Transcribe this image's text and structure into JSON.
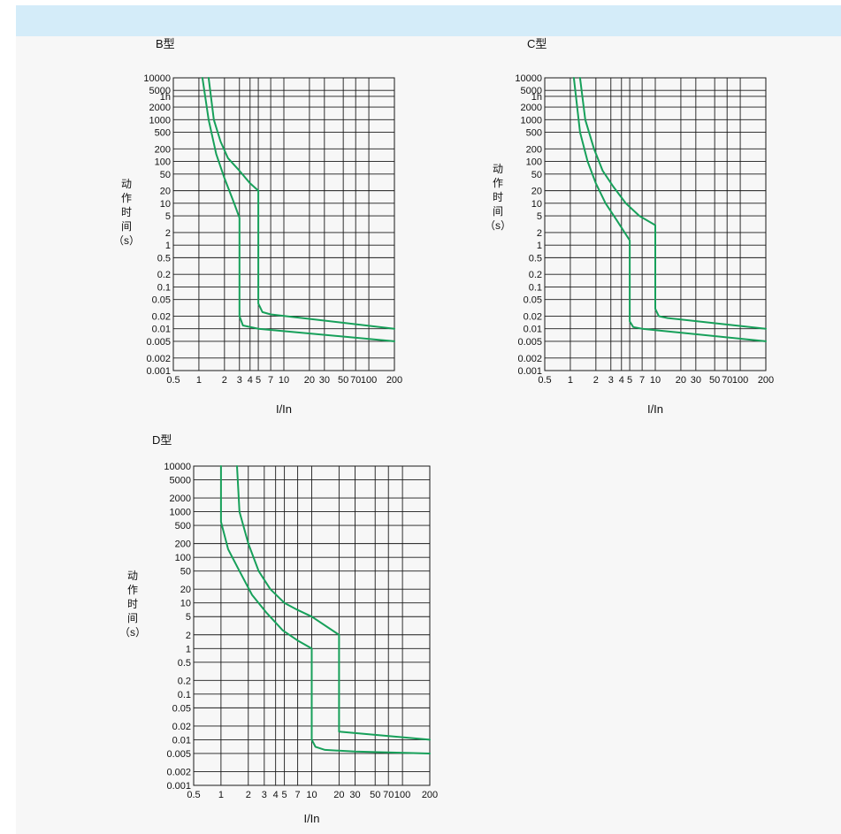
{
  "colors": {
    "curve": "#17a05a",
    "grid": "#1a1a1a",
    "header_bar": "#d4ecf9",
    "background": "#f7f7f7"
  },
  "chart_data": [
    {
      "type": "line",
      "title": "B型",
      "xlabel": "I/In",
      "ylabel": [
        "动",
        "作",
        "时",
        "间",
        "（s）"
      ],
      "x_scale": "log",
      "y_scale": "log",
      "xlim": [
        0.5,
        200
      ],
      "ylim": [
        0.001,
        10000
      ],
      "x_ticks": [
        "0.5",
        "1",
        "2",
        "3",
        "4",
        "5",
        "7",
        "10",
        "20",
        "30",
        "50",
        "70",
        "100",
        "200"
      ],
      "y_ticks": [
        "10000",
        "5000",
        "1h",
        "2000",
        "1000",
        "500",
        "200",
        "100",
        "50",
        "20",
        "10",
        "5",
        "2",
        "1",
        "0.5",
        "0.2",
        "0.1",
        "0.05",
        "0.02",
        "0.01",
        "0.005",
        "0.002",
        "0.001"
      ],
      "series": [
        {
          "x": [
            1.1,
            1.3,
            1.6,
            2.0,
            2.6,
            3.0,
            3.0,
            3.3,
            5.0,
            200
          ],
          "y": [
            10000,
            1000,
            150,
            40,
            10,
            4.5,
            0.02,
            0.012,
            0.01,
            0.005
          ]
        },
        {
          "x": [
            1.3,
            1.5,
            1.8,
            2.2,
            3.0,
            4.0,
            5.0,
            5.0,
            5.6,
            7.0,
            200
          ],
          "y": [
            10000,
            1000,
            300,
            120,
            60,
            30,
            20,
            0.04,
            0.025,
            0.022,
            0.01
          ]
        }
      ]
    },
    {
      "type": "line",
      "title": "C型",
      "xlabel": "I/In",
      "ylabel": [
        "动",
        "作",
        "时",
        "间",
        "（s）"
      ],
      "x_scale": "log",
      "y_scale": "log",
      "xlim": [
        0.5,
        200
      ],
      "ylim": [
        0.001,
        10000
      ],
      "x_ticks": [
        "0.5",
        "1",
        "2",
        "3",
        "4",
        "5",
        "7",
        "10",
        "20",
        "30",
        "50",
        "70",
        "100",
        "200"
      ],
      "y_ticks": [
        "10000",
        "5000",
        "1h",
        "2000",
        "1000",
        "500",
        "200",
        "100",
        "50",
        "20",
        "10",
        "5",
        "2",
        "1",
        "0.5",
        "0.2",
        "0.1",
        "0.05",
        "0.02",
        "0.01",
        "0.005",
        "0.002",
        "0.001"
      ],
      "series": [
        {
          "x": [
            1.1,
            1.3,
            1.6,
            2.0,
            2.6,
            3.5,
            5.0,
            5.0,
            5.5,
            7.0,
            200
          ],
          "y": [
            10000,
            500,
            100,
            30,
            10,
            4,
            1.3,
            0.015,
            0.011,
            0.01,
            0.005
          ]
        },
        {
          "x": [
            1.3,
            1.5,
            1.9,
            2.4,
            3.2,
            4.5,
            6.5,
            10,
            10,
            11,
            14,
            200
          ],
          "y": [
            10000,
            1000,
            200,
            60,
            25,
            10,
            5,
            3,
            0.03,
            0.02,
            0.018,
            0.01
          ]
        }
      ]
    },
    {
      "type": "line",
      "title": "D型",
      "xlabel": "I/In",
      "ylabel": [
        "动",
        "作",
        "时",
        "间",
        "（s）"
      ],
      "x_scale": "log",
      "y_scale": "log",
      "xlim": [
        0.5,
        200
      ],
      "ylim": [
        0.001,
        10000
      ],
      "x_ticks": [
        "0.5",
        "1",
        "2",
        "3",
        "4",
        "5",
        "7",
        "10",
        "20",
        "30",
        "50",
        "70",
        "100",
        "200"
      ],
      "y_ticks": [
        "10000",
        "5000",
        "2000",
        "1000",
        "500",
        "200",
        "100",
        "50",
        "20",
        "10",
        "5",
        "2",
        "1",
        "0.5",
        "0.2",
        "0.1",
        "0.05",
        "0.02",
        "0.01",
        "0.005",
        "0.002",
        "0.001"
      ],
      "series": [
        {
          "x": [
            1.0,
            1.0,
            1.2,
            1.6,
            2.2,
            3.2,
            4.8,
            7.0,
            10,
            10,
            11,
            14,
            30,
            200
          ],
          "y": [
            10000,
            600,
            150,
            50,
            15,
            6,
            2.5,
            1.5,
            1,
            0.01,
            0.007,
            0.006,
            0.0055,
            0.005
          ]
        },
        {
          "x": [
            1.5,
            1.6,
            2.0,
            2.6,
            3.5,
            5.0,
            7.0,
            10,
            20,
            20,
            200
          ],
          "y": [
            10000,
            1000,
            200,
            50,
            20,
            10,
            7,
            5,
            2,
            0.015,
            0.01
          ]
        }
      ]
    }
  ]
}
